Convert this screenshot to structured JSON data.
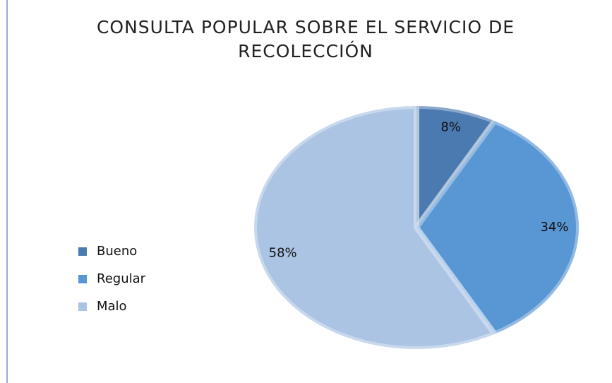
{
  "chart_data": {
    "type": "pie",
    "title": "CONSULTA POPULAR SOBRE EL SERVICIO DE RECOLECCIÓN",
    "categories": [
      "Bueno",
      "Regular",
      "Malo"
    ],
    "values": [
      8,
      34,
      58
    ],
    "value_labels": [
      "8%",
      "34%",
      "58%"
    ],
    "colors": [
      "#4a7ab0",
      "#5996d4",
      "#abc4e4"
    ],
    "legend": "left"
  }
}
